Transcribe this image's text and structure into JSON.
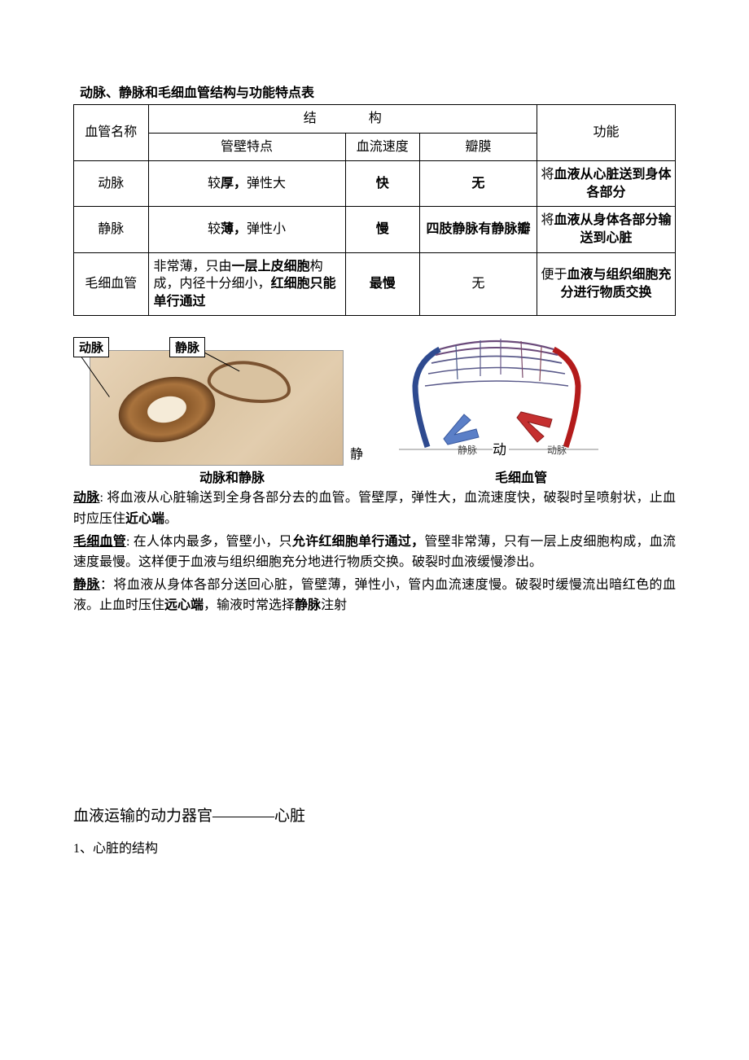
{
  "title": "动脉、静脉和毛细血管结构与功能特点表",
  "table": {
    "col_widths": [
      "70px",
      "185px",
      "70px",
      "110px",
      "130px"
    ],
    "header": {
      "vessel_name": "血管名称",
      "structure": "结　　　　构",
      "wall": "管壁特点",
      "speed": "血流速度",
      "valve": "瓣膜",
      "function": "功能"
    },
    "rows": [
      {
        "name": "动脉",
        "wall_html": "较<b>厚，</b>弹性大",
        "speed": "快",
        "valve": "无",
        "func_html": "将<b>血液从心脏送到身体各部分</b>"
      },
      {
        "name": "静脉",
        "wall_html": "较<b>薄，</b>弹性小",
        "speed": "慢",
        "valve": "四肢静脉有静脉瓣",
        "func_html": "将<b>血液从身体各部分输送到心脏</b>"
      },
      {
        "name": "毛细血管",
        "wall_html": "非常薄，只由<b>一层上皮细胞</b>构成，内径十分细小，<b>红细胞只能单行通过</b>",
        "speed": "最慢",
        "valve": "无",
        "func_html": "便于<b>血液与组织细胞充分进行物质交换</b>"
      }
    ]
  },
  "figure_left": {
    "label_artery": "动脉",
    "label_vein": "静脉",
    "between_char": "静",
    "caption": "动脉和静脉",
    "colors": {
      "tissue_light": "#e8d4b8",
      "tissue_dark": "#d4b996",
      "wall_dark": "#6b4423",
      "wall_mid": "#a9733d",
      "lumen": "#f5ebd8"
    }
  },
  "figure_right": {
    "caption": "毛细血管",
    "label_vein": "静脉",
    "label_artery": "动脉",
    "big_label_jing": "静",
    "big_label_dong": "动",
    "colors": {
      "vein": "#2e4a8f",
      "artery": "#b31b1b",
      "vein_arrow": "#5b7fc7",
      "artery_arrow": "#c53030",
      "capillary_blend": "#6a4a7a"
    }
  },
  "paragraphs": {
    "p1_term": "动脉",
    "p1_text": ": 将血液从心脏输送到全身各部分去的血管。管壁厚，弹性大，血流速度快，破裂时呈喷射状，止血时应压住",
    "p1_bold_tail": "近心端",
    "p1_tail": "。",
    "p2_term": "毛细血管",
    "p2_text_a": ": 在人体内最多，管壁小，只",
    "p2_bold_mid": "允许红细胞单行通过，",
    "p2_text_b": "管壁非常薄，只有一层上皮细胞构成，血流速度最慢。这样便于血液与组织细胞充分地进行物质交换。破裂时血液缓慢渗出。",
    "p3_term": "静脉",
    "p3_text_a": "：将血液从身体各部分送回心脏，管壁薄，弹性小，管内血流速度慢。破裂时缓慢流出暗红色的血液。止血时压住",
    "p3_bold_a": "远心端",
    "p3_text_b": "，输液时常选择",
    "p3_bold_b": "静脉",
    "p3_text_c": "注射"
  },
  "section2": {
    "title_a": "血液运输的动力器官",
    "title_dash": "――――",
    "title_b": "心脏",
    "sub": "1、心脏的结构"
  }
}
